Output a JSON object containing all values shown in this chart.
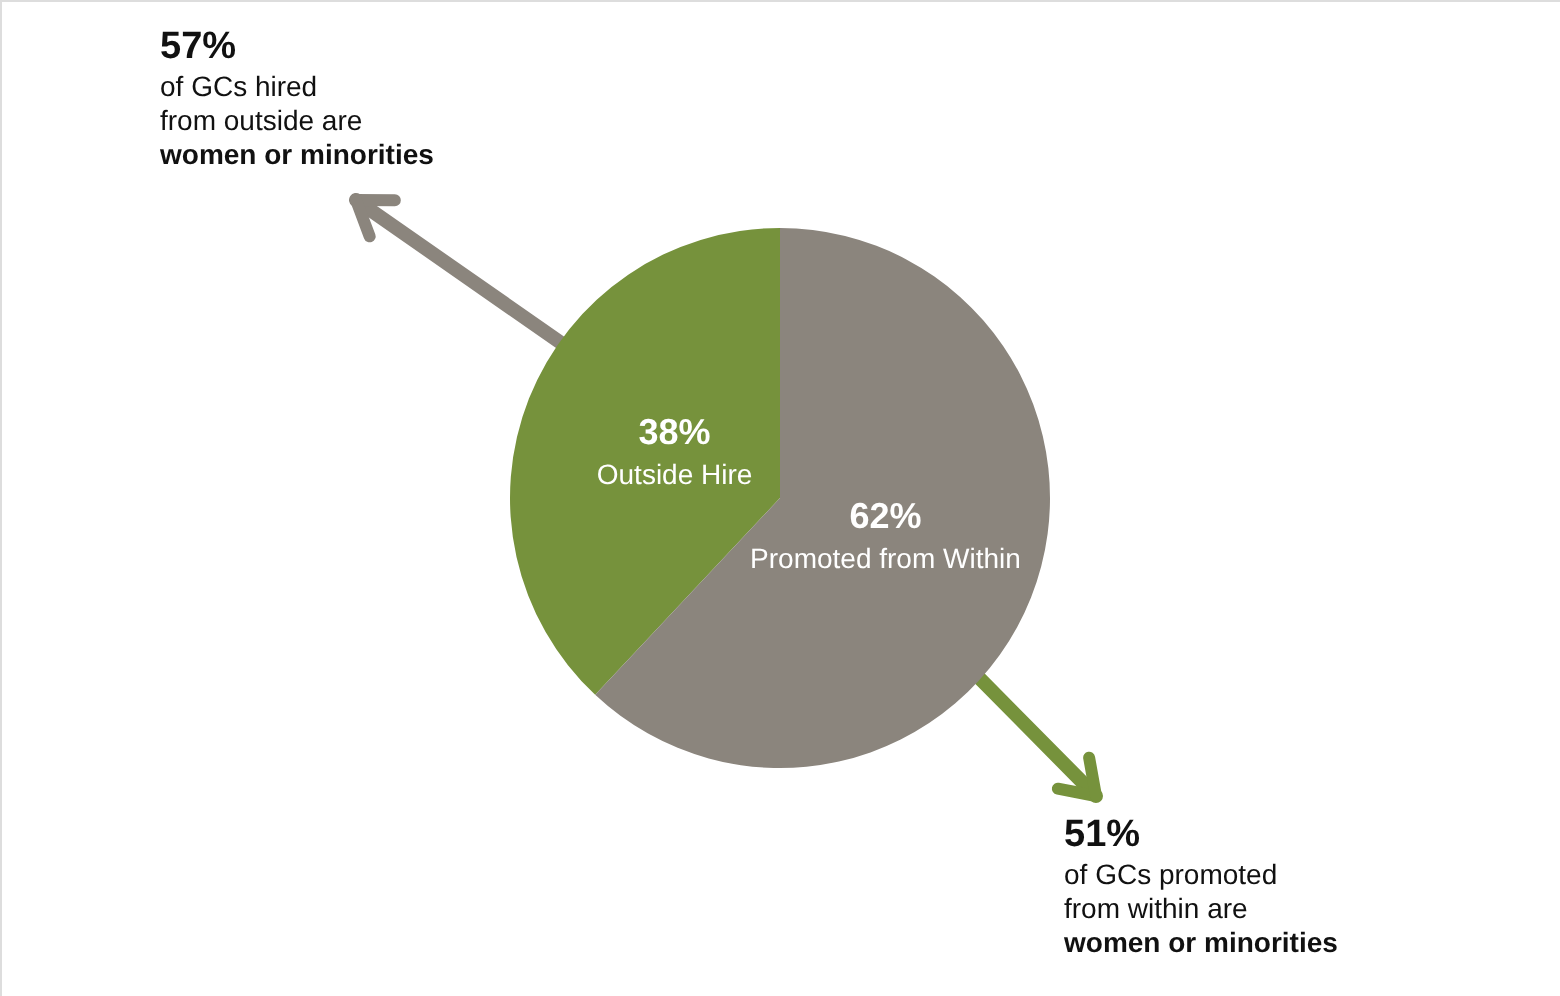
{
  "chart_data": {
    "type": "pie",
    "categories": [
      "Outside Hire",
      "Promoted from Within"
    ],
    "values": [
      38,
      62
    ],
    "colors": [
      "#76923c",
      "#8b857d"
    ],
    "value_labels": [
      "38%",
      "62%"
    ],
    "annotations": [
      "57%\nof GCs hired\nfrom outside are\nwomen or minorities",
      "51%\nof GCs promoted\nfrom within are\nwomen or minorities"
    ]
  }
}
